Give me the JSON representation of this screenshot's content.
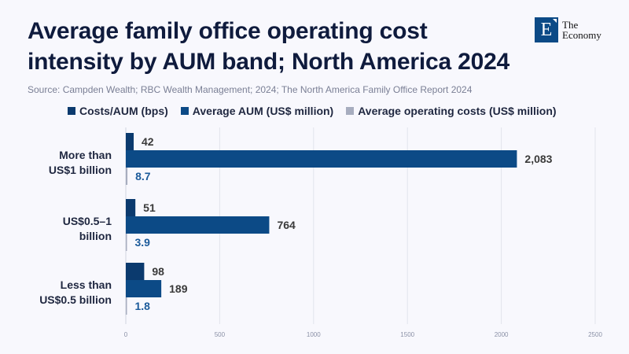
{
  "header": {
    "title": "Average family office operating cost intensity by AUM band; North America 2024",
    "source": "Source: Campden Wealth; RBC Wealth Management; 2024; The North America Family Office Report 2024",
    "logo_letter": "E",
    "logo_line1": "The",
    "logo_line2": "Economy"
  },
  "chart_data": {
    "type": "bar",
    "orientation": "horizontal",
    "title": "Average family office operating cost intensity by AUM band; North America 2024",
    "xlabel": "",
    "ylabel": "",
    "xlim": [
      0,
      2500
    ],
    "xticks": [
      0,
      500,
      1000,
      1500,
      2000,
      2500
    ],
    "xtick_labels": [
      "0",
      "500",
      "1000",
      "1500",
      "2000",
      "2500"
    ],
    "grid": true,
    "legend_position": "top",
    "categories": [
      "More than\nUS$1 billion",
      "US$0.5–1\nbillion",
      "Less than\nUS$0.5 billion"
    ],
    "series": [
      {
        "name": "Costs/AUM (bps)",
        "color": "#0b3a6e",
        "values": [
          42,
          51,
          98
        ],
        "labels": [
          "42",
          "51",
          "98"
        ],
        "label_color": "#3a3a3a"
      },
      {
        "name": "Average AUM (US$ million)",
        "color": "#0c4a86",
        "values": [
          2083,
          764,
          189
        ],
        "labels": [
          "2,083",
          "764",
          "189"
        ],
        "label_color": "#3a3a3a"
      },
      {
        "name": "Average operating costs (US$ million)",
        "color": "#a7adbf",
        "values": [
          8.7,
          3.9,
          1.8
        ],
        "labels": [
          "8.7",
          "3.9",
          "1.8"
        ],
        "label_color": "#1b5a9a"
      }
    ]
  }
}
